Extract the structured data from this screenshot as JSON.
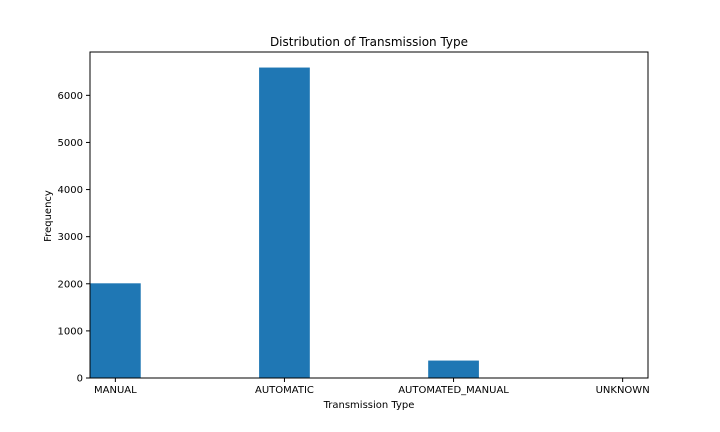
{
  "chart_data": {
    "type": "bar",
    "title": "Distribution of Transmission Type",
    "xlabel": "Transmission Type",
    "ylabel": "Frequency",
    "categories": [
      "MANUAL",
      "AUTOMATIC",
      "AUTOMATED_MANUAL",
      "UNKNOWN"
    ],
    "values": [
      2010,
      6590,
      370,
      0
    ],
    "ylim": [
      0,
      6920
    ],
    "yticks": [
      0,
      1000,
      2000,
      3000,
      4000,
      5000,
      6000
    ],
    "grid": false,
    "legend": "none",
    "bar_color": "#1f77b4"
  }
}
